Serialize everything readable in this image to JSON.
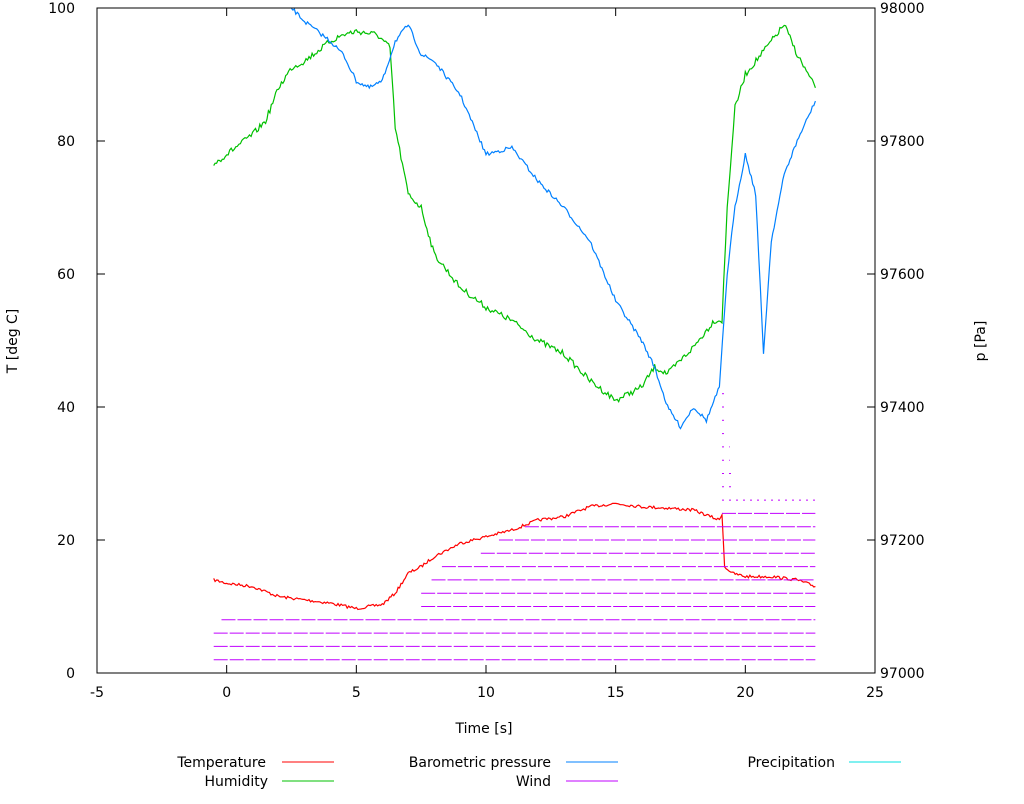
{
  "chart_data": {
    "type": "line",
    "title": "",
    "xlabel": "Time [s]",
    "ylabel": "T [deg C]",
    "y2label": "p [Pa]",
    "xlim": [
      -5,
      25
    ],
    "ylim": [
      0,
      100
    ],
    "y2lim": [
      97000,
      98000
    ],
    "xticks": [
      -5,
      0,
      5,
      10,
      15,
      20,
      25
    ],
    "yticks": [
      0,
      20,
      40,
      60,
      80,
      100
    ],
    "y2ticks": [
      97000,
      97200,
      97400,
      97600,
      97800,
      98000
    ],
    "grid": false,
    "legend": "bottom",
    "series": [
      {
        "name": "Temperature",
        "color": "#ff0000",
        "axis": "left",
        "x": [
          -0.5,
          0,
          1,
          2,
          3,
          4,
          5,
          6,
          6.5,
          7,
          7.5,
          8,
          9,
          10,
          11,
          12,
          13,
          14,
          15,
          16,
          17,
          18,
          19,
          19.1,
          19.2,
          19.5,
          20,
          21,
          22,
          22.7
        ],
        "y": [
          14,
          13.5,
          13,
          11.5,
          11,
          10.5,
          9.7,
          10.3,
          12,
          15,
          16,
          17.5,
          19.5,
          20.5,
          21.5,
          23,
          23.5,
          25,
          25.5,
          25,
          24.8,
          24.5,
          23,
          24,
          16,
          15,
          14.5,
          14.5,
          14,
          13
        ]
      },
      {
        "name": "Humidity",
        "color": "#00c000",
        "axis": "left",
        "x": [
          -0.5,
          0,
          1,
          1.5,
          2,
          2.5,
          3,
          4,
          4.5,
          5,
          5.8,
          6.3,
          6.5,
          7,
          7.5,
          8,
          9,
          10,
          11,
          12,
          13,
          14,
          15,
          16,
          16.5,
          17,
          18,
          18.8,
          19.1,
          19.3,
          19.6,
          20,
          21,
          21.5,
          22,
          22.7
        ],
        "y": [
          76.5,
          78,
          81,
          83,
          88,
          91,
          92,
          95,
          96,
          96.5,
          96,
          94,
          82,
          72,
          70,
          63,
          58,
          55,
          53,
          50,
          48,
          44,
          41,
          43,
          46,
          45,
          49,
          53,
          53,
          70,
          85,
          90,
          95,
          97.5,
          93,
          88
        ]
      },
      {
        "name": "Barometric pressure",
        "color": "#0080ff",
        "axis": "right",
        "x": [
          2.5,
          3,
          4,
          4.5,
          5,
          5.5,
          6,
          6.5,
          7,
          7.5,
          8,
          9,
          10,
          11,
          12,
          13,
          14,
          15,
          16,
          16.5,
          17,
          17.5,
          18,
          18.5,
          19,
          19.3,
          19.6,
          20,
          20.4,
          20.7,
          21,
          21.5,
          22,
          22.7
        ],
        "y": [
          98000,
          97980,
          97950,
          97930,
          97890,
          97880,
          97890,
          97950,
          97975,
          97930,
          97920,
          97870,
          97780,
          97790,
          97740,
          97700,
          97650,
          97560,
          97500,
          97460,
          97400,
          97370,
          97400,
          97380,
          97430,
          97600,
          97700,
          97780,
          97720,
          97480,
          97650,
          97750,
          97800,
          97860
        ]
      },
      {
        "name": "Wind",
        "color": "#c000ff",
        "axis": "left",
        "levels": [
          {
            "y": 2,
            "x": [
              -0.5,
              22.7
            ]
          },
          {
            "y": 4,
            "x": [
              -0.5,
              22.7
            ]
          },
          {
            "y": 6,
            "x": [
              -0.5,
              22.7
            ]
          },
          {
            "y": 8,
            "x": [
              -0.2,
              22.7
            ]
          },
          {
            "y": 10,
            "x": [
              7.5,
              22.7
            ]
          },
          {
            "y": 12,
            "x": [
              7.5,
              22.7
            ]
          },
          {
            "y": 14,
            "x": [
              7.9,
              22.7
            ]
          },
          {
            "y": 16,
            "x": [
              8.3,
              22.7
            ]
          },
          {
            "y": 18,
            "x": [
              9.8,
              22.7
            ]
          },
          {
            "y": 20,
            "x": [
              10.5,
              22.7
            ]
          },
          {
            "y": 22,
            "x": [
              11.5,
              22.7
            ]
          },
          {
            "y": 24,
            "x": [
              19.1,
              22.7
            ]
          },
          {
            "y": 26,
            "x": [
              19.1,
              22.7
            ]
          },
          {
            "y": 28,
            "x": [
              19.1,
              19.6
            ]
          },
          {
            "y": 30,
            "x": [
              19.1,
              19.5
            ]
          },
          {
            "y": 32,
            "x": [
              19.1,
              19.4
            ]
          },
          {
            "y": 34,
            "x": [
              19.1,
              19.4
            ]
          },
          {
            "y": 36,
            "x": [
              19.1,
              19.3
            ]
          },
          {
            "y": 38,
            "x": [
              19.1,
              19.3
            ]
          },
          {
            "y": 40,
            "x": [
              19.1,
              19.3
            ]
          },
          {
            "y": 42,
            "x": [
              19.1,
              19.2
            ]
          }
        ]
      },
      {
        "name": "Precipitation",
        "color": "#00e0e0",
        "axis": "left",
        "x": [],
        "y": []
      }
    ]
  }
}
